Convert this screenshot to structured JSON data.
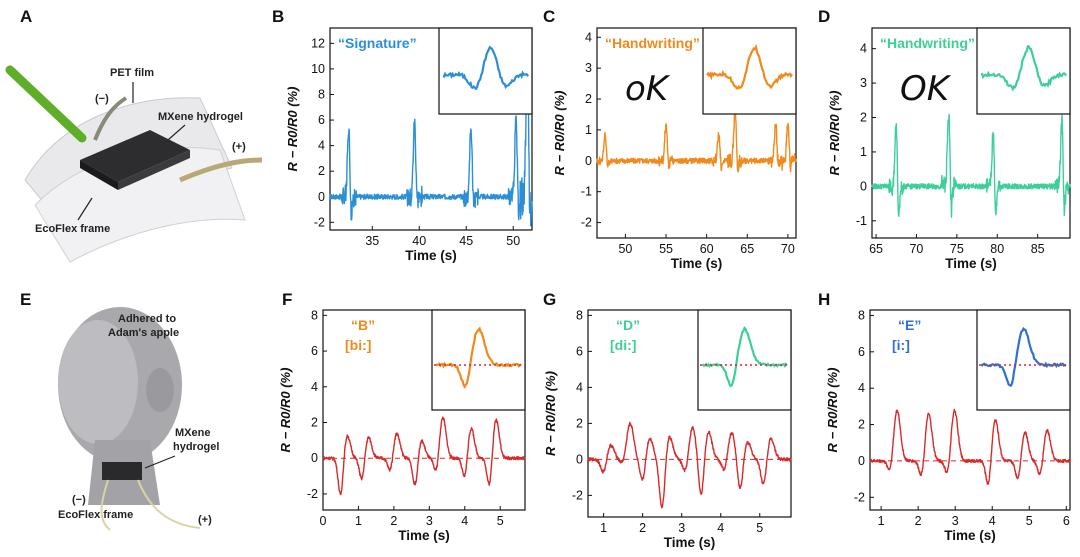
{
  "illustrations": {
    "A": {
      "panel_label": "A",
      "labels": {
        "pet_film": "PET film",
        "minus": "(−)",
        "mxene": "MXene hydrogel",
        "plus": "(+)",
        "ecoflex": "EcoFlex frame"
      }
    },
    "E": {
      "panel_label": "E",
      "labels": {
        "adhered_1": "Adhered to",
        "adhered_2": "Adam's apple",
        "mxene_1": "MXene",
        "mxene_2": "hydrogel",
        "minus": "(−)",
        "ecoflex": "EcoFlex frame",
        "plus": "(+)"
      }
    }
  },
  "chart_data": [
    {
      "panel": "B",
      "type": "line",
      "color": "#2b8fd8",
      "annotation": "“Signature”",
      "xlabel": "Time (s)",
      "ylabel": "R − R0/R0 (%)",
      "xlim": [
        30.5,
        52
      ],
      "ylim": [
        -2.6,
        13.2
      ],
      "xticks": [
        35,
        40,
        45,
        50
      ],
      "yticks": [
        -2,
        0,
        2,
        4,
        6,
        8,
        10,
        12
      ],
      "baseline": 0,
      "events": [
        {
          "x": 32.5,
          "amp": 5.5,
          "neg": -2.2
        },
        {
          "x": 39.5,
          "amp": 6.0,
          "neg": -0.8
        },
        {
          "x": 45.5,
          "amp": 5.5,
          "neg": -1.0
        },
        {
          "x": 50.3,
          "amp": 6.0,
          "neg": -2.0
        },
        {
          "x": 51.5,
          "amp": 12.0,
          "neg": -2.5
        }
      ],
      "inset": true
    },
    {
      "panel": "C",
      "type": "line",
      "color": "#f08a1c",
      "annotation": "“Handwriting”",
      "handwritten": "oK",
      "xlabel": "Time (s)",
      "ylabel": "R − R0/R0 (%)",
      "xlim": [
        46.5,
        71
      ],
      "ylim": [
        -2.5,
        4.3
      ],
      "xticks": [
        50,
        55,
        60,
        65,
        70
      ],
      "yticks": [
        -2,
        -1,
        0,
        1,
        2,
        3,
        4
      ],
      "baseline": 0,
      "events": [
        {
          "x": 47.5,
          "amp": 0.9,
          "neg": -0.3
        },
        {
          "x": 55.0,
          "amp": 1.2,
          "neg": -0.3
        },
        {
          "x": 61.5,
          "amp": 0.9,
          "neg": -0.3
        },
        {
          "x": 63.5,
          "amp": 1.7,
          "neg": -0.4
        },
        {
          "x": 68.5,
          "amp": 1.2,
          "neg": -0.3
        },
        {
          "x": 70.0,
          "amp": 1.2,
          "neg": -0.3
        }
      ],
      "inset": true
    },
    {
      "panel": "D",
      "type": "line",
      "color": "#3ecf99",
      "annotation": "“Handwriting”",
      "handwritten": "OK",
      "xlabel": "Time (s)",
      "ylabel": "R − R0/R0 (%)",
      "xlim": [
        64.5,
        89
      ],
      "ylim": [
        -1.5,
        4.6
      ],
      "xticks": [
        65,
        70,
        75,
        80,
        85
      ],
      "yticks": [
        -1,
        0,
        1,
        2,
        3,
        4
      ],
      "baseline": 0,
      "events": [
        {
          "x": 67.5,
          "amp": 1.9,
          "neg": -1.1
        },
        {
          "x": 74.0,
          "amp": 2.2,
          "neg": -1.0
        },
        {
          "x": 79.5,
          "amp": 1.6,
          "neg": -1.0
        },
        {
          "x": 88.0,
          "amp": 1.9,
          "neg": -0.9
        }
      ],
      "inset": true
    },
    {
      "panel": "F",
      "type": "line",
      "color": "#d82a2a",
      "annotation": "“B”",
      "annotation2": "[bi:]",
      "annotation_color": "#f08a1c",
      "xlabel": "Time (s)",
      "ylabel": "R − R0/R0 (%)",
      "xlim": [
        0,
        5.7
      ],
      "ylim": [
        -2.9,
        8.3
      ],
      "xticks": [
        0,
        1,
        2,
        3,
        4,
        5
      ],
      "yticks": [
        -2,
        0,
        2,
        4,
        6,
        8
      ],
      "baseline": 0,
      "events": [
        {
          "x": 0.6,
          "amp": 1.3,
          "neg": -2.2
        },
        {
          "x": 1.2,
          "amp": 1.2,
          "neg": -1.3
        },
        {
          "x": 2.0,
          "amp": 1.4,
          "neg": -0.8
        },
        {
          "x": 2.7,
          "amp": 1.0,
          "neg": -1.6
        },
        {
          "x": 3.3,
          "amp": 2.3,
          "neg": -0.9
        },
        {
          "x": 4.1,
          "amp": 1.7,
          "neg": -1.2
        },
        {
          "x": 4.8,
          "amp": 2.2,
          "neg": -1.7
        }
      ],
      "inset": true,
      "inset_color": "#f08a1c"
    },
    {
      "panel": "G",
      "type": "line",
      "color": "#d82a2a",
      "annotation": "“D”",
      "annotation2": "[di:]",
      "annotation_color": "#3ecf99",
      "xlabel": "Time (s)",
      "ylabel": "R − R0/R0 (%)",
      "xlim": [
        0.6,
        5.8
      ],
      "ylim": [
        -3.2,
        8.3
      ],
      "xticks": [
        1,
        2,
        3,
        4,
        5
      ],
      "yticks": [
        -2,
        0,
        2,
        4,
        6,
        8
      ],
      "baseline": 0,
      "events": [
        {
          "x": 1.1,
          "amp": 0.8,
          "neg": -0.8
        },
        {
          "x": 1.6,
          "amp": 2.0,
          "neg": -0.3
        },
        {
          "x": 2.1,
          "amp": 1.2,
          "neg": -1.3
        },
        {
          "x": 2.6,
          "amp": 1.3,
          "neg": -2.8
        },
        {
          "x": 3.2,
          "amp": 1.8,
          "neg": -0.8
        },
        {
          "x": 3.6,
          "amp": 1.6,
          "neg": -2.2
        },
        {
          "x": 4.2,
          "amp": 1.5,
          "neg": -0.7
        },
        {
          "x": 4.6,
          "amp": 1.0,
          "neg": -1.8
        },
        {
          "x": 5.2,
          "amp": 1.2,
          "neg": -1.5
        }
      ],
      "inset": true,
      "inset_color": "#3ecf99"
    },
    {
      "panel": "H",
      "type": "line",
      "color": "#d82a2a",
      "annotation": "“E”",
      "annotation2": "[i:]",
      "annotation_color": "#2f6fd8",
      "xlabel": "Time (s)",
      "ylabel": "R − R0/R0 (%)",
      "xlim": [
        0.7,
        6.1
      ],
      "ylim": [
        -2.7,
        8.3
      ],
      "xticks": [
        1,
        2,
        3,
        4,
        5,
        6
      ],
      "yticks": [
        -2,
        0,
        2,
        4,
        6,
        8
      ],
      "baseline": 0,
      "events": [
        {
          "x": 1.35,
          "amp": 2.8,
          "neg": -0.7
        },
        {
          "x": 2.2,
          "amp": 2.6,
          "neg": -1.0
        },
        {
          "x": 2.9,
          "amp": 2.8,
          "neg": -0.9
        },
        {
          "x": 4.0,
          "amp": 2.3,
          "neg": -1.5
        },
        {
          "x": 4.8,
          "amp": 1.6,
          "neg": -1.1
        },
        {
          "x": 5.4,
          "amp": 1.7,
          "neg": -0.9
        }
      ],
      "inset": true,
      "inset_color": "#2f6fd8"
    }
  ]
}
